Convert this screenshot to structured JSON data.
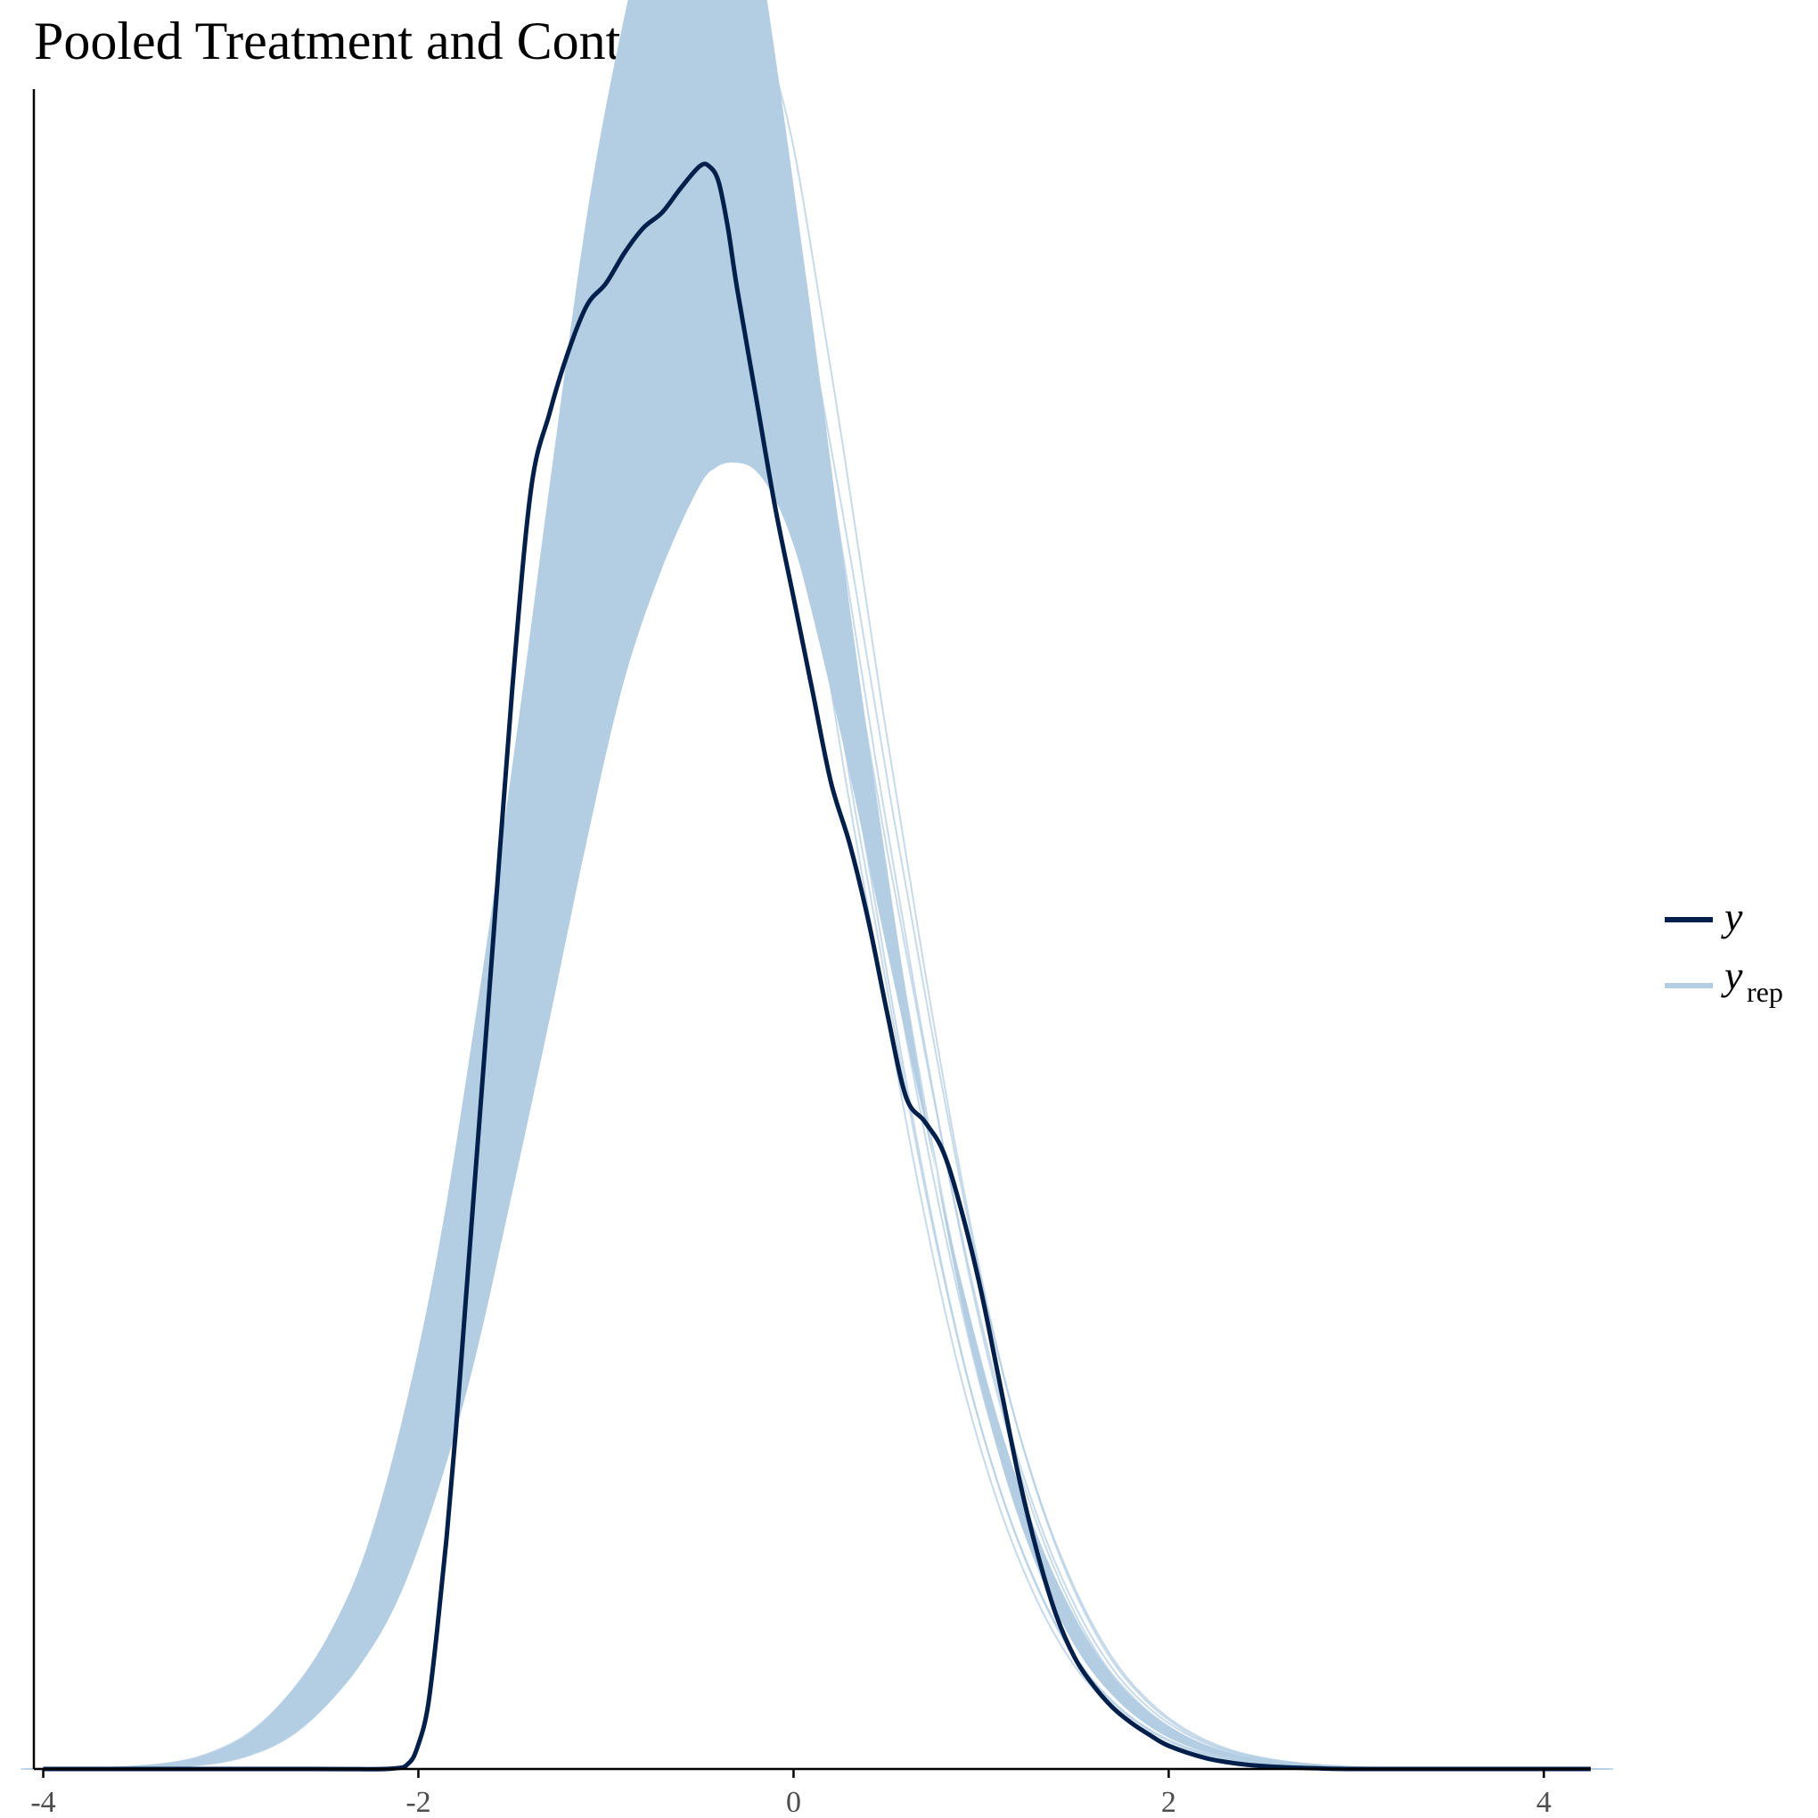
{
  "title": "Pooled Treatment and Control",
  "colors": {
    "observed": "#011f4b",
    "replicated": "#b3cde3",
    "axis": "#000000",
    "tick_text": "#4d4d4d"
  },
  "chart_data": {
    "type": "line",
    "title": "Pooled Treatment and Control",
    "xlabel": "",
    "ylabel": "",
    "xlim": [
      -4.05,
      4.25
    ],
    "ylim": [
      0,
      0.545
    ],
    "x_ticks": [
      -4,
      -2,
      0,
      2,
      4
    ],
    "x_tick_labels": [
      "-4",
      "-2",
      "0",
      "2",
      "4"
    ],
    "y_axis_ticks_shown": false,
    "grid": false,
    "legend_position": "right",
    "legend": [
      {
        "label": "y",
        "subscript": "",
        "color": "#011f4b"
      },
      {
        "label": "y",
        "subscript": "rep",
        "color": "#b3cde3"
      }
    ],
    "series": [
      {
        "name": "y",
        "x": [
          -4.0,
          -2.6,
          -2.15,
          -2.05,
          -2.0,
          -1.95,
          -1.9,
          -1.85,
          -1.8,
          -1.75,
          -1.7,
          -1.6,
          -1.5,
          -1.4,
          -1.3,
          -1.2,
          -1.1,
          -1.0,
          -0.9,
          -0.8,
          -0.7,
          -0.6,
          -0.5,
          -0.45,
          -0.4,
          -0.35,
          -0.3,
          -0.2,
          -0.1,
          0.0,
          0.1,
          0.2,
          0.3,
          0.4,
          0.5,
          0.6,
          0.7,
          0.8,
          0.9,
          1.0,
          1.1,
          1.2,
          1.3,
          1.4,
          1.5,
          1.6,
          1.7,
          1.8,
          1.9,
          2.0,
          2.2,
          2.4,
          2.6,
          2.8,
          3.0,
          3.5,
          4.0,
          4.25
        ],
        "values": [
          0.0,
          0.0,
          0.0001,
          0.002,
          0.008,
          0.02,
          0.045,
          0.075,
          0.11,
          0.15,
          0.19,
          0.27,
          0.35,
          0.415,
          0.44,
          0.46,
          0.475,
          0.482,
          0.492,
          0.5,
          0.505,
          0.513,
          0.52,
          0.52,
          0.515,
          0.5,
          0.48,
          0.445,
          0.41,
          0.38,
          0.35,
          0.32,
          0.3,
          0.275,
          0.245,
          0.218,
          0.21,
          0.2,
          0.18,
          0.155,
          0.125,
          0.095,
          0.07,
          0.05,
          0.036,
          0.027,
          0.02,
          0.015,
          0.011,
          0.0075,
          0.0035,
          0.0015,
          0.0006,
          0.0002,
          0.0,
          0.0,
          0.0,
          0.0
        ]
      },
      {
        "name": "yrep",
        "x": [
          -4.0,
          -3.5,
          -3.2,
          -3.0,
          -2.8,
          -2.6,
          -2.4,
          -2.2,
          -2.0,
          -1.8,
          -1.6,
          -1.4,
          -1.2,
          -1.0,
          -0.8,
          -0.6,
          -0.5,
          -0.4,
          -0.3,
          -0.2,
          -0.1,
          0.0,
          0.2,
          0.4,
          0.6,
          0.8,
          1.0,
          1.2,
          1.4,
          1.6,
          1.8,
          2.0,
          2.2,
          2.4,
          2.6,
          2.8,
          3.0,
          3.5,
          4.0,
          4.25
        ],
        "values": [
          0.0,
          0.0005,
          0.002,
          0.005,
          0.011,
          0.022,
          0.038,
          0.062,
          0.1,
          0.15,
          0.215,
          0.285,
          0.36,
          0.43,
          0.48,
          0.518,
          0.528,
          0.53,
          0.527,
          0.515,
          0.495,
          0.465,
          0.395,
          0.32,
          0.25,
          0.185,
          0.13,
          0.088,
          0.057,
          0.035,
          0.021,
          0.012,
          0.0065,
          0.0035,
          0.0018,
          0.0009,
          0.0004,
          0.0001,
          0.0,
          0.0
        ]
      }
    ]
  }
}
